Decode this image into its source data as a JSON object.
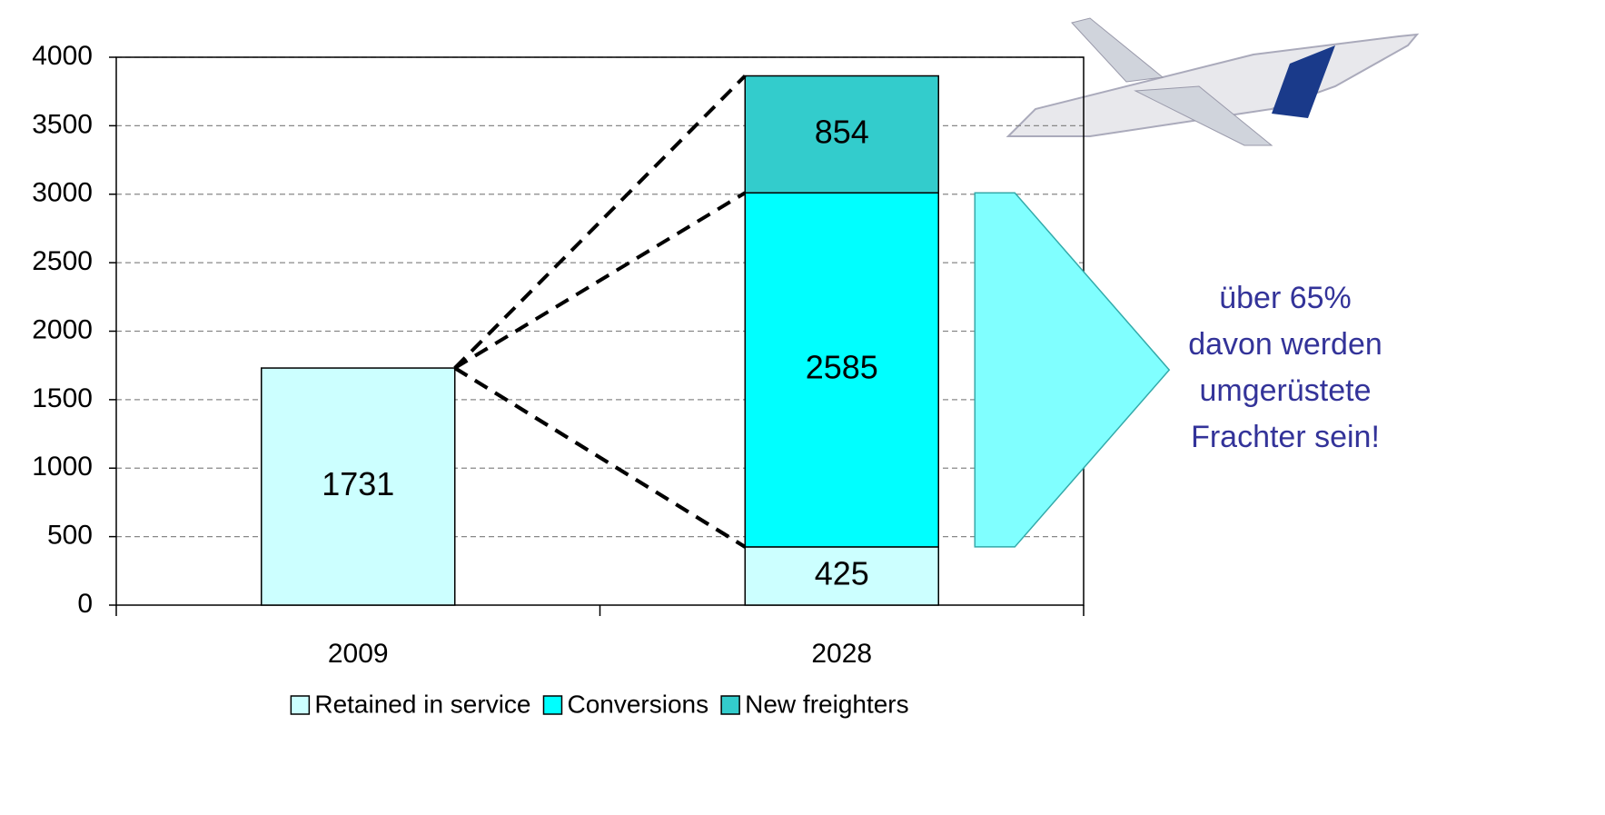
{
  "chart_data": {
    "type": "stacked_bar",
    "categories": [
      "2009",
      "2028"
    ],
    "series": [
      {
        "name": "Retained in service",
        "color": "#ccffff",
        "values": [
          1731,
          425
        ]
      },
      {
        "name": "Conversions",
        "color": "#00ffff",
        "values": [
          null,
          2585
        ]
      },
      {
        "name": "New freighters",
        "color": "#33cccc",
        "values": [
          null,
          854
        ]
      }
    ],
    "ylim": [
      0,
      4000
    ],
    "yticks": [
      0,
      500,
      1000,
      1500,
      2000,
      2500,
      3000,
      3500,
      4000
    ],
    "grid": true,
    "legend": "bottom",
    "annotation": [
      "über 65%",
      "davon werden",
      "umgerüstete",
      "Frachter sein!"
    ]
  }
}
